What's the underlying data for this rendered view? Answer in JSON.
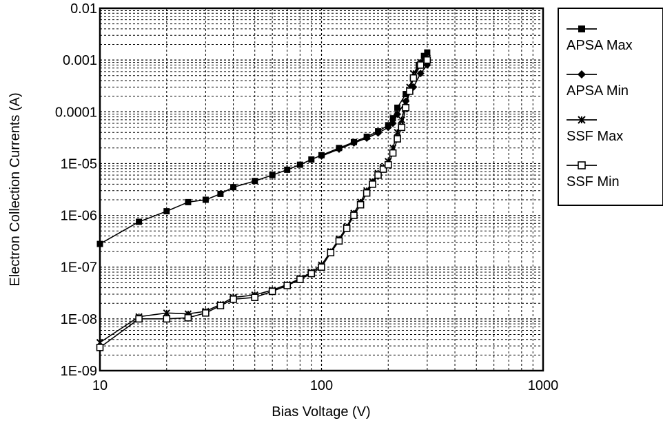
{
  "chart_data": {
    "type": "line",
    "xlabel": "Bias Voltage (V)",
    "ylabel": "Electron Collection Currents (A)",
    "x_scale": "log",
    "y_scale": "log",
    "xlim": [
      10,
      1000
    ],
    "ylim": [
      1e-09,
      0.01
    ],
    "x_tick_labels": [
      "10",
      "100",
      "1000"
    ],
    "y_tick_labels": [
      "1E-09",
      "1E-08",
      "1E-07",
      "1E-06",
      "1E-05",
      "0.0001",
      "0.001",
      "0.01"
    ],
    "grid": true,
    "legend_position": "right",
    "series": [
      {
        "name": "APSA Max",
        "marker": "square-filled",
        "color": "#000000",
        "points": [
          [
            10,
            2.8e-07
          ],
          [
            15,
            7.5e-07
          ],
          [
            20,
            1.2e-06
          ],
          [
            25,
            1.8e-06
          ],
          [
            30,
            2e-06
          ],
          [
            35,
            2.6e-06
          ],
          [
            40,
            3.5e-06
          ],
          [
            50,
            4.6e-06
          ],
          [
            60,
            6e-06
          ],
          [
            70,
            7.6e-06
          ],
          [
            80,
            9.5e-06
          ],
          [
            90,
            1.2e-05
          ],
          [
            100,
            1.45e-05
          ],
          [
            120,
            2e-05
          ],
          [
            140,
            2.6e-05
          ],
          [
            160,
            3.3e-05
          ],
          [
            180,
            4.2e-05
          ],
          [
            200,
            5.5e-05
          ],
          [
            210,
            7.5e-05
          ],
          [
            220,
            0.00012
          ],
          [
            240,
            0.00022
          ],
          [
            260,
            0.00045
          ],
          [
            275,
            0.0008
          ],
          [
            290,
            0.0012
          ],
          [
            300,
            0.0014
          ]
        ]
      },
      {
        "name": "APSA Min",
        "marker": "diamond-filled",
        "color": "#000000",
        "points": [
          [
            100,
            1.4e-05
          ],
          [
            120,
            1.9e-05
          ],
          [
            140,
            2.5e-05
          ],
          [
            160,
            3.1e-05
          ],
          [
            180,
            3.9e-05
          ],
          [
            200,
            5e-05
          ],
          [
            210,
            6e-05
          ],
          [
            220,
            9e-05
          ],
          [
            240,
            0.00016
          ],
          [
            260,
            0.0003
          ],
          [
            280,
            0.00055
          ],
          [
            300,
            0.0008
          ]
        ]
      },
      {
        "name": "SSF Max",
        "marker": "asterisk",
        "color": "#000000",
        "points": [
          [
            10,
            3.5e-09
          ],
          [
            15,
            1.1e-08
          ],
          [
            20,
            1.3e-08
          ],
          [
            25,
            1.25e-08
          ],
          [
            30,
            1.4e-08
          ],
          [
            35,
            1.9e-08
          ],
          [
            40,
            2.6e-08
          ],
          [
            50,
            2.9e-08
          ],
          [
            60,
            3.6e-08
          ],
          [
            70,
            4.6e-08
          ],
          [
            80,
            6e-08
          ],
          [
            90,
            8e-08
          ],
          [
            100,
            1.1e-07
          ],
          [
            110,
            2e-07
          ],
          [
            120,
            3.5e-07
          ],
          [
            130,
            6e-07
          ],
          [
            140,
            1.1e-06
          ],
          [
            150,
            1.8e-06
          ],
          [
            160,
            3e-06
          ],
          [
            170,
            4.5e-06
          ],
          [
            180,
            6.5e-06
          ],
          [
            190,
            8.5e-06
          ],
          [
            200,
            1.1e-05
          ],
          [
            210,
            2e-05
          ],
          [
            220,
            4e-05
          ],
          [
            230,
            7e-05
          ],
          [
            240,
            0.00015
          ],
          [
            250,
            0.0003
          ],
          [
            260,
            0.00055
          ],
          [
            280,
            0.0009
          ],
          [
            300,
            0.0011
          ]
        ]
      },
      {
        "name": "SSF Min",
        "marker": "square-open",
        "color": "#000000",
        "points": [
          [
            10,
            2.8e-09
          ],
          [
            15,
            1e-08
          ],
          [
            20,
            1e-08
          ],
          [
            25,
            1.05e-08
          ],
          [
            30,
            1.3e-08
          ],
          [
            35,
            1.8e-08
          ],
          [
            40,
            2.4e-08
          ],
          [
            50,
            2.6e-08
          ],
          [
            60,
            3.4e-08
          ],
          [
            70,
            4.4e-08
          ],
          [
            80,
            5.8e-08
          ],
          [
            90,
            7.5e-08
          ],
          [
            100,
            1e-07
          ],
          [
            110,
            1.9e-07
          ],
          [
            120,
            3.2e-07
          ],
          [
            130,
            5.6e-07
          ],
          [
            140,
            1e-06
          ],
          [
            150,
            1.6e-06
          ],
          [
            160,
            2.7e-06
          ],
          [
            170,
            4e-06
          ],
          [
            180,
            6e-06
          ],
          [
            190,
            7.8e-06
          ],
          [
            200,
            9.5e-06
          ],
          [
            210,
            1.6e-05
          ],
          [
            220,
            3e-05
          ],
          [
            230,
            5e-05
          ],
          [
            240,
            0.00012
          ],
          [
            250,
            0.00025
          ],
          [
            260,
            0.00045
          ],
          [
            280,
            0.0008
          ],
          [
            300,
            0.001
          ]
        ]
      }
    ]
  }
}
